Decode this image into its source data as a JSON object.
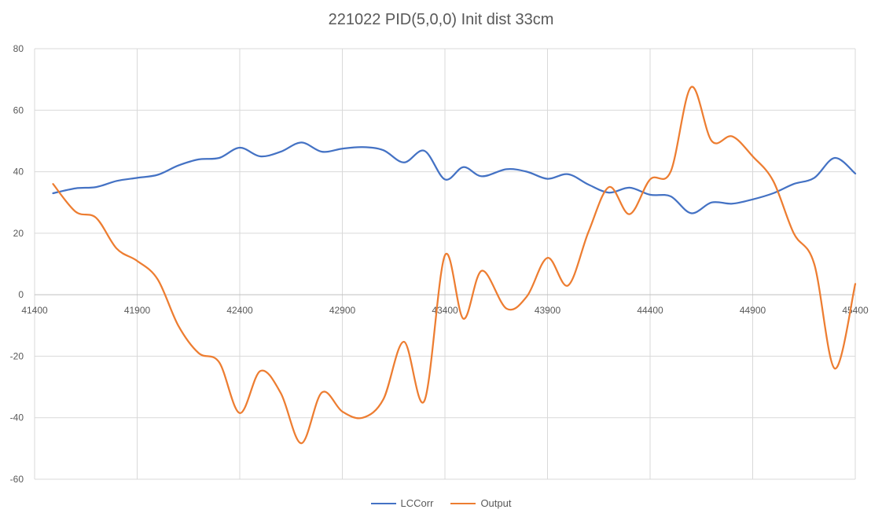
{
  "chart_data": {
    "type": "line",
    "title": "221022 PID(5,0,0) Init dist 33cm",
    "xlabel": "",
    "ylabel": "",
    "xlim": [
      41400,
      45400
    ],
    "ylim": [
      -60,
      80
    ],
    "x_ticks": [
      41400,
      41900,
      42400,
      42900,
      43400,
      43900,
      44400,
      44900,
      45400
    ],
    "y_ticks": [
      80,
      60,
      40,
      20,
      0,
      -20,
      -40,
      -60
    ],
    "grid": true,
    "legend_position": "bottom",
    "series": [
      {
        "name": "LCCorr",
        "color": "#4472C4",
        "points": [
          [
            41490,
            33
          ],
          [
            41600,
            34.6
          ],
          [
            41700,
            35
          ],
          [
            41800,
            37
          ],
          [
            41900,
            38
          ],
          [
            42000,
            39
          ],
          [
            42100,
            42
          ],
          [
            42200,
            44
          ],
          [
            42300,
            44.5
          ],
          [
            42400,
            47.8
          ],
          [
            42500,
            45
          ],
          [
            42600,
            46.5
          ],
          [
            42700,
            49.5
          ],
          [
            42800,
            46.5
          ],
          [
            42900,
            47.5
          ],
          [
            43000,
            48
          ],
          [
            43100,
            47
          ],
          [
            43200,
            43
          ],
          [
            43300,
            46.8
          ],
          [
            43400,
            37.5
          ],
          [
            43490,
            41.5
          ],
          [
            43580,
            38.5
          ],
          [
            43700,
            40.8
          ],
          [
            43800,
            40
          ],
          [
            43900,
            37.7
          ],
          [
            44000,
            39.2
          ],
          [
            44100,
            35.8
          ],
          [
            44200,
            33.2
          ],
          [
            44300,
            34.8
          ],
          [
            44400,
            32.5
          ],
          [
            44500,
            32
          ],
          [
            44600,
            26.5
          ],
          [
            44700,
            30
          ],
          [
            44800,
            29.6
          ],
          [
            44900,
            31
          ],
          [
            45000,
            33
          ],
          [
            45100,
            36
          ],
          [
            45200,
            38
          ],
          [
            45300,
            44.5
          ],
          [
            45400,
            39.4
          ]
        ]
      },
      {
        "name": "Output",
        "color": "#ED7D31",
        "points": [
          [
            41490,
            36
          ],
          [
            41600,
            27
          ],
          [
            41700,
            25
          ],
          [
            41800,
            15
          ],
          [
            41900,
            11
          ],
          [
            42000,
            5
          ],
          [
            42100,
            -10
          ],
          [
            42200,
            -19
          ],
          [
            42300,
            -22
          ],
          [
            42400,
            -38.5
          ],
          [
            42500,
            -24.8
          ],
          [
            42600,
            -32
          ],
          [
            42700,
            -48.3
          ],
          [
            42800,
            -31.8
          ],
          [
            42900,
            -38
          ],
          [
            43000,
            -40
          ],
          [
            43100,
            -34
          ],
          [
            43200,
            -15.3
          ],
          [
            43300,
            -34.5
          ],
          [
            43400,
            12.8
          ],
          [
            43490,
            -7.8
          ],
          [
            43580,
            7.8
          ],
          [
            43700,
            -4.5
          ],
          [
            43800,
            -0.5
          ],
          [
            43900,
            12
          ],
          [
            44000,
            3
          ],
          [
            44100,
            20.5
          ],
          [
            44200,
            35
          ],
          [
            44300,
            26.2
          ],
          [
            44400,
            37.5
          ],
          [
            44500,
            40
          ],
          [
            44600,
            67.5
          ],
          [
            44700,
            50
          ],
          [
            44800,
            51.5
          ],
          [
            44900,
            45
          ],
          [
            45000,
            37
          ],
          [
            45100,
            20
          ],
          [
            45200,
            10
          ],
          [
            45300,
            -24
          ],
          [
            45400,
            3.5
          ]
        ]
      }
    ]
  }
}
